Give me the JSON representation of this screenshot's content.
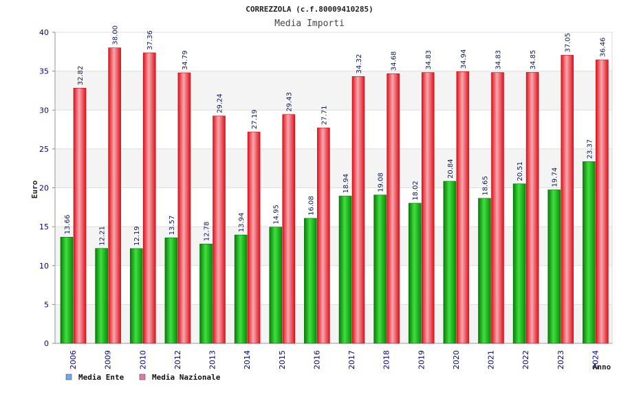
{
  "chart_data": {
    "type": "bar",
    "title": "CORREZZOLA (c.f.80009410285)",
    "subtitle": "Media Importi",
    "xlabel": "Anno",
    "ylabel": "Euro",
    "ylim": [
      0,
      40
    ],
    "yticks": [
      0,
      5,
      10,
      15,
      20,
      25,
      30,
      35,
      40
    ],
    "grid": true,
    "legend_position": "bottom-left",
    "categories": [
      "2006",
      "2009",
      "2010",
      "2012",
      "2013",
      "2014",
      "2015",
      "2016",
      "2017",
      "2018",
      "2019",
      "2020",
      "2021",
      "2022",
      "2023",
      "2024"
    ],
    "series": [
      {
        "name": "Media Ente",
        "color": "#0a9a0a",
        "legend_color": "#6aaaf0",
        "values": [
          13.66,
          12.21,
          12.19,
          13.57,
          12.78,
          13.94,
          14.95,
          16.08,
          18.94,
          19.08,
          18.02,
          20.84,
          18.65,
          20.51,
          19.74,
          23.37
        ],
        "labels": [
          "13.66",
          "12.21",
          "12.19",
          "13.57",
          "12.78",
          "13.94",
          "14.95",
          "16.08",
          "18.94",
          "19.08",
          "18.02",
          "20.84",
          "18.65",
          "20.51",
          "19.74",
          "23.37"
        ]
      },
      {
        "name": "Media Nazionale",
        "color": "#e8141e",
        "legend_color": "#e07aa8",
        "values": [
          32.82,
          38.0,
          37.36,
          34.79,
          29.24,
          27.19,
          29.43,
          27.71,
          34.32,
          34.68,
          34.83,
          34.94,
          34.83,
          34.85,
          37.05,
          36.46
        ],
        "labels": [
          "32.82",
          "38.00",
          "37.36",
          "34.79",
          "29.24",
          "27.19",
          "29.43",
          "27.71",
          "34.32",
          "34.68",
          "34.83",
          "34.94",
          "34.83",
          "34.85",
          "37.05",
          "36.46"
        ]
      }
    ]
  }
}
